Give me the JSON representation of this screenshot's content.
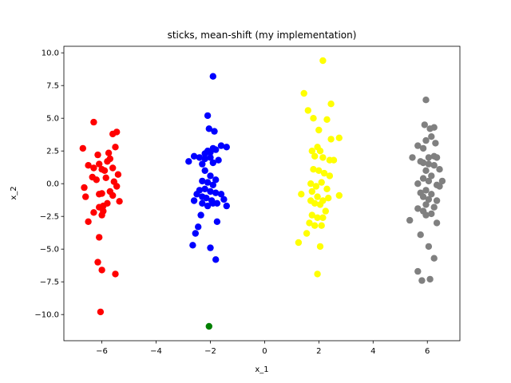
{
  "chart_data": {
    "type": "scatter",
    "title": "sticks, mean-shift (my implementation)",
    "xlabel": "x_1",
    "ylabel": "x_2",
    "xlim": [
      -7.4,
      7.2
    ],
    "ylim": [
      -12.0,
      10.5
    ],
    "xticks": [
      -6,
      -4,
      -2,
      0,
      2,
      4,
      6
    ],
    "xtick_labels": [
      "−6",
      "−4",
      "−2",
      "0",
      "2",
      "4",
      "6"
    ],
    "yticks": [
      -10.0,
      -7.5,
      -5.0,
      -2.5,
      0.0,
      2.5,
      5.0,
      7.5,
      10.0
    ],
    "ytick_labels": [
      "−10.0",
      "−7.5",
      "−5.0",
      "−2.5",
      "0.0",
      "2.5",
      "5.0",
      "7.5",
      "10.0"
    ],
    "grid": false,
    "series": [
      {
        "color": "#ff0000",
        "points": [
          [
            -6.3,
            4.7
          ],
          [
            -6.7,
            2.7
          ],
          [
            -6.5,
            1.4
          ],
          [
            -6.3,
            1.2
          ],
          [
            -6.1,
            1.5
          ],
          [
            -6.0,
            1.1
          ],
          [
            -5.9,
            1.0
          ],
          [
            -5.8,
            1.7
          ],
          [
            -5.7,
            1.9
          ],
          [
            -5.6,
            1.2
          ],
          [
            -5.5,
            2.8
          ],
          [
            -5.4,
            0.7
          ],
          [
            -5.6,
            3.8
          ],
          [
            -5.45,
            3.95
          ],
          [
            -6.15,
            2.2
          ],
          [
            -5.75,
            2.35
          ],
          [
            -6.35,
            0.5
          ],
          [
            -6.2,
            0.3
          ],
          [
            -5.85,
            0.45
          ],
          [
            -5.55,
            0.15
          ],
          [
            -6.65,
            -0.3
          ],
          [
            -6.6,
            -1.0
          ],
          [
            -6.1,
            -0.8
          ],
          [
            -6.0,
            -0.75
          ],
          [
            -5.7,
            -0.6
          ],
          [
            -5.6,
            -0.9
          ],
          [
            -5.45,
            -0.2
          ],
          [
            -5.35,
            -1.35
          ],
          [
            -6.1,
            -1.8
          ],
          [
            -5.95,
            -1.7
          ],
          [
            -5.8,
            -1.5
          ],
          [
            -5.95,
            -2.1
          ],
          [
            -6.0,
            -2.4
          ],
          [
            -6.3,
            -2.2
          ],
          [
            -6.5,
            -2.9
          ],
          [
            -6.1,
            -4.1
          ],
          [
            -6.15,
            -6.0
          ],
          [
            -6.0,
            -6.6
          ],
          [
            -5.5,
            -6.9
          ],
          [
            -6.05,
            -9.8
          ]
        ]
      },
      {
        "color": "#0000ff",
        "points": [
          [
            -1.9,
            8.2
          ],
          [
            -2.1,
            5.2
          ],
          [
            -2.05,
            4.2
          ],
          [
            -1.85,
            4.0
          ],
          [
            -2.6,
            2.1
          ],
          [
            -2.4,
            2.0
          ],
          [
            -2.2,
            2.3
          ],
          [
            -2.1,
            2.5
          ],
          [
            -2.0,
            2.4
          ],
          [
            -1.9,
            2.7
          ],
          [
            -1.8,
            2.6
          ],
          [
            -1.6,
            2.9
          ],
          [
            -1.4,
            2.8
          ],
          [
            -2.8,
            1.7
          ],
          [
            -2.3,
            1.5
          ],
          [
            -2.2,
            1.9
          ],
          [
            -2.0,
            2.0
          ],
          [
            -1.9,
            1.6
          ],
          [
            -1.7,
            1.8
          ],
          [
            -2.2,
            1.0
          ],
          [
            -2.0,
            0.6
          ],
          [
            -1.8,
            0.3
          ],
          [
            -2.3,
            0.2
          ],
          [
            -2.1,
            0.1
          ],
          [
            -1.9,
            -0.1
          ],
          [
            -2.4,
            -0.5
          ],
          [
            -2.2,
            -0.4
          ],
          [
            -2.0,
            -0.6
          ],
          [
            -1.8,
            -0.7
          ],
          [
            -1.6,
            -0.8
          ],
          [
            -2.5,
            -0.8
          ],
          [
            -2.3,
            -1.0
          ],
          [
            -2.15,
            -1.1
          ],
          [
            -1.95,
            -1.3
          ],
          [
            -1.75,
            -1.5
          ],
          [
            -1.5,
            -1.2
          ],
          [
            -2.6,
            -1.3
          ],
          [
            -2.3,
            -1.5
          ],
          [
            -2.1,
            -1.7
          ],
          [
            -1.9,
            -1.5
          ],
          [
            -1.4,
            -1.7
          ],
          [
            -2.35,
            -2.4
          ],
          [
            -1.75,
            -2.9
          ],
          [
            -2.45,
            -3.3
          ],
          [
            -2.55,
            -3.8
          ],
          [
            -2.65,
            -4.7
          ],
          [
            -2.0,
            -4.9
          ],
          [
            -1.8,
            -5.8
          ]
        ]
      },
      {
        "color": "#ffff00",
        "points": [
          [
            2.15,
            9.4
          ],
          [
            1.45,
            6.9
          ],
          [
            2.45,
            6.1
          ],
          [
            1.6,
            5.6
          ],
          [
            1.8,
            5.0
          ],
          [
            2.3,
            4.9
          ],
          [
            2.0,
            4.1
          ],
          [
            2.45,
            3.4
          ],
          [
            2.75,
            3.5
          ],
          [
            1.95,
            2.8
          ],
          [
            1.75,
            2.5
          ],
          [
            2.05,
            2.5
          ],
          [
            1.85,
            2.1
          ],
          [
            2.15,
            2.0
          ],
          [
            2.4,
            1.8
          ],
          [
            2.55,
            1.8
          ],
          [
            1.8,
            1.1
          ],
          [
            2.0,
            1.0
          ],
          [
            2.2,
            0.8
          ],
          [
            2.4,
            0.6
          ],
          [
            1.7,
            0.0
          ],
          [
            1.9,
            -0.2
          ],
          [
            2.1,
            0.1
          ],
          [
            2.3,
            -0.4
          ],
          [
            1.35,
            -0.8
          ],
          [
            1.75,
            -0.6
          ],
          [
            1.95,
            -1.0
          ],
          [
            2.15,
            -1.3
          ],
          [
            2.35,
            -1.1
          ],
          [
            2.75,
            -0.9
          ],
          [
            1.7,
            -1.3
          ],
          [
            1.85,
            -1.5
          ],
          [
            2.05,
            -1.6
          ],
          [
            2.25,
            -2.1
          ],
          [
            1.75,
            -2.4
          ],
          [
            1.95,
            -2.6
          ],
          [
            2.15,
            -2.6
          ],
          [
            1.65,
            -3.0
          ],
          [
            1.85,
            -3.2
          ],
          [
            2.1,
            -3.2
          ],
          [
            1.55,
            -3.8
          ],
          [
            1.25,
            -4.5
          ],
          [
            2.05,
            -4.8
          ],
          [
            1.95,
            -6.9
          ]
        ]
      },
      {
        "color": "#808080",
        "points": [
          [
            5.95,
            6.4
          ],
          [
            5.9,
            4.5
          ],
          [
            6.1,
            4.2
          ],
          [
            6.25,
            4.3
          ],
          [
            6.15,
            3.6
          ],
          [
            5.95,
            3.3
          ],
          [
            6.3,
            3.1
          ],
          [
            5.65,
            2.9
          ],
          [
            5.85,
            2.7
          ],
          [
            6.05,
            2.0
          ],
          [
            6.25,
            2.1
          ],
          [
            6.35,
            2.0
          ],
          [
            5.45,
            2.0
          ],
          [
            5.75,
            1.7
          ],
          [
            5.85,
            1.6
          ],
          [
            6.05,
            1.5
          ],
          [
            6.25,
            1.4
          ],
          [
            6.45,
            1.1
          ],
          [
            5.95,
            1.0
          ],
          [
            6.15,
            0.6
          ],
          [
            6.05,
            0.2
          ],
          [
            5.85,
            0.4
          ],
          [
            5.65,
            0.0
          ],
          [
            6.35,
            -0.1
          ],
          [
            6.45,
            -0.2
          ],
          [
            6.55,
            0.2
          ],
          [
            5.75,
            -0.7
          ],
          [
            5.95,
            -0.5
          ],
          [
            6.15,
            -0.8
          ],
          [
            5.85,
            -1.0
          ],
          [
            6.05,
            -1.2
          ],
          [
            6.35,
            -1.3
          ],
          [
            5.95,
            -1.6
          ],
          [
            6.25,
            -1.8
          ],
          [
            5.65,
            -1.9
          ],
          [
            5.85,
            -2.1
          ],
          [
            6.15,
            -2.3
          ],
          [
            5.95,
            -2.4
          ],
          [
            5.35,
            -2.8
          ],
          [
            6.35,
            -3.0
          ],
          [
            5.75,
            -3.9
          ],
          [
            6.05,
            -4.8
          ],
          [
            6.25,
            -5.7
          ],
          [
            5.65,
            -6.7
          ],
          [
            5.8,
            -7.4
          ],
          [
            6.1,
            -7.3
          ]
        ]
      },
      {
        "color": "#008000",
        "points": [
          [
            -2.05,
            -10.9
          ]
        ]
      }
    ]
  }
}
